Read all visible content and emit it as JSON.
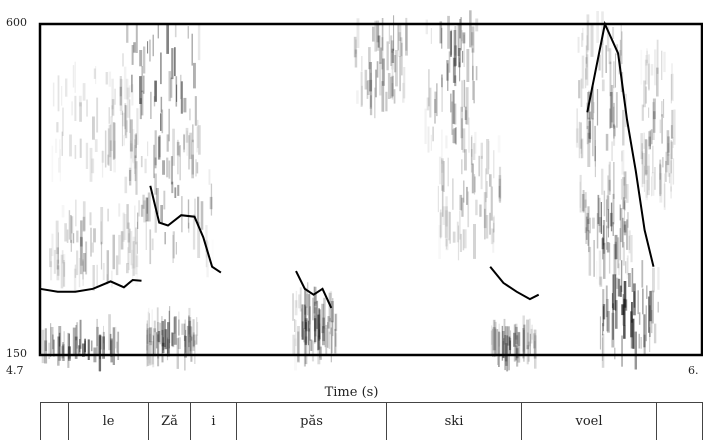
{
  "chart_data": {
    "type": "spectrogram",
    "ylim": [
      150,
      600
    ],
    "xlim": [
      4.7,
      6.2
    ],
    "y_ticks": [
      "600",
      "150"
    ],
    "x_ticks": [
      "4.7",
      "6."
    ],
    "xlabel": "Time (s)",
    "pitch_unit": "Hz",
    "pitch_segments": [
      [
        [
          4.7,
          240
        ],
        [
          4.74,
          236
        ],
        [
          4.78,
          236
        ],
        [
          4.82,
          240
        ],
        [
          4.86,
          250
        ],
        [
          4.89,
          242
        ],
        [
          4.91,
          252
        ],
        [
          4.93,
          251
        ]
      ],
      [
        [
          4.95,
          380
        ],
        [
          4.97,
          330
        ],
        [
          4.99,
          326
        ],
        [
          5.02,
          340
        ],
        [
          5.05,
          338
        ],
        [
          5.07,
          310
        ],
        [
          5.09,
          270
        ],
        [
          5.11,
          262
        ]
      ],
      [
        [
          5.28,
          264
        ],
        [
          5.3,
          240
        ],
        [
          5.32,
          232
        ],
        [
          5.34,
          240
        ],
        [
          5.36,
          214
        ]
      ],
      [
        [
          5.72,
          270
        ],
        [
          5.75,
          248
        ],
        [
          5.78,
          236
        ],
        [
          5.81,
          226
        ],
        [
          5.83,
          232
        ]
      ],
      [
        [
          5.94,
          480
        ],
        [
          5.96,
          540
        ],
        [
          5.98,
          600
        ],
        [
          6.01,
          560
        ],
        [
          6.03,
          470
        ],
        [
          6.05,
          400
        ],
        [
          6.07,
          320
        ],
        [
          6.09,
          270
        ]
      ]
    ],
    "energy_blobs": [
      {
        "t": 4.79,
        "f": 160,
        "spread_t": 0.09,
        "spread_f": 14,
        "dark": 0.7
      },
      {
        "t": 4.82,
        "f": 300,
        "spread_t": 0.1,
        "spread_f": 30,
        "dark": 0.35
      },
      {
        "t": 4.82,
        "f": 470,
        "spread_t": 0.1,
        "spread_f": 40,
        "dark": 0.25
      },
      {
        "t": 4.97,
        "f": 520,
        "spread_t": 0.09,
        "spread_f": 70,
        "dark": 0.65
      },
      {
        "t": 4.99,
        "f": 360,
        "spread_t": 0.1,
        "spread_f": 50,
        "dark": 0.45
      },
      {
        "t": 5.0,
        "f": 170,
        "spread_t": 0.06,
        "spread_f": 14,
        "dark": 0.55
      },
      {
        "t": 5.32,
        "f": 190,
        "spread_t": 0.05,
        "spread_f": 25,
        "dark": 0.55
      },
      {
        "t": 5.47,
        "f": 560,
        "spread_t": 0.06,
        "spread_f": 45,
        "dark": 0.45
      },
      {
        "t": 5.63,
        "f": 530,
        "spread_t": 0.06,
        "spread_f": 60,
        "dark": 0.55
      },
      {
        "t": 5.67,
        "f": 370,
        "spread_t": 0.07,
        "spread_f": 45,
        "dark": 0.35
      },
      {
        "t": 5.77,
        "f": 160,
        "spread_t": 0.05,
        "spread_f": 14,
        "dark": 0.5
      },
      {
        "t": 6.03,
        "f": 200,
        "spread_t": 0.07,
        "spread_f": 45,
        "dark": 0.85
      },
      {
        "t": 5.98,
        "f": 330,
        "spread_t": 0.06,
        "spread_f": 40,
        "dark": 0.55
      },
      {
        "t": 5.97,
        "f": 500,
        "spread_t": 0.06,
        "spread_f": 60,
        "dark": 0.4
      },
      {
        "t": 6.1,
        "f": 460,
        "spread_t": 0.04,
        "spread_f": 60,
        "dark": 0.3
      }
    ]
  },
  "tier": {
    "intervals": [
      "",
      "le",
      "Ză",
      "i",
      "păs",
      "ski",
      "voel",
      ""
    ]
  }
}
